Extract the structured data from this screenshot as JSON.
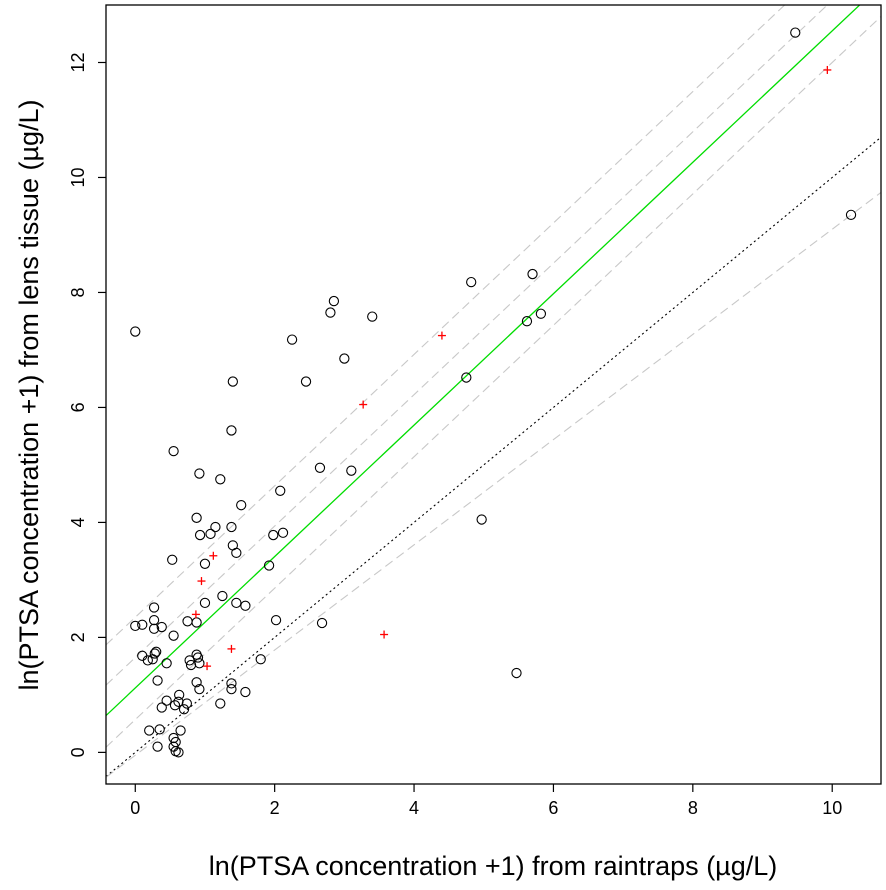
{
  "chart_data": {
    "type": "scatter",
    "title": "",
    "xlabel": "ln(PTSA concentration +1) from raintraps (µg/L)",
    "ylabel": "ln(PTSA concentration +1) from lens tissue (µg/L)",
    "xlim": [
      -0.42,
      10.7
    ],
    "ylim": [
      -0.55,
      13.0
    ],
    "x_ticks": [
      0,
      2,
      4,
      6,
      8,
      10
    ],
    "y_ticks": [
      0,
      2,
      4,
      6,
      8,
      10,
      12
    ],
    "grid": false,
    "colors": {
      "circles": "#000000",
      "plus": "#ff0000",
      "fit_line": "#00dd00",
      "one_to_one": "#000000",
      "band": "#c8c8c8"
    },
    "series": [
      {
        "name": "circles",
        "marker": "circle",
        "points": [
          [
            0.0,
            7.32
          ],
          [
            0.55,
            5.24
          ],
          [
            0.92,
            4.85
          ],
          [
            0.88,
            4.08
          ],
          [
            0.93,
            3.78
          ],
          [
            1.08,
            3.8
          ],
          [
            1.15,
            3.92
          ],
          [
            0.53,
            3.35
          ],
          [
            1.0,
            3.28
          ],
          [
            0.27,
            2.52
          ],
          [
            0.27,
            2.3
          ],
          [
            0.0,
            2.2
          ],
          [
            0.1,
            2.22
          ],
          [
            0.27,
            2.15
          ],
          [
            0.38,
            2.18
          ],
          [
            0.55,
            2.03
          ],
          [
            0.28,
            1.72
          ],
          [
            0.3,
            1.75
          ],
          [
            0.1,
            1.68
          ],
          [
            0.18,
            1.6
          ],
          [
            0.25,
            1.62
          ],
          [
            0.75,
            2.28
          ],
          [
            0.88,
            2.26
          ],
          [
            1.0,
            2.6
          ],
          [
            0.45,
            1.55
          ],
          [
            0.78,
            1.6
          ],
          [
            0.8,
            1.52
          ],
          [
            0.9,
            1.65
          ],
          [
            0.92,
            1.55
          ],
          [
            0.88,
            1.7
          ],
          [
            0.32,
            1.25
          ],
          [
            0.88,
            1.22
          ],
          [
            0.92,
            1.1
          ],
          [
            0.63,
            1.0
          ],
          [
            0.45,
            0.9
          ],
          [
            0.38,
            0.78
          ],
          [
            0.62,
            0.88
          ],
          [
            0.57,
            0.82
          ],
          [
            0.7,
            0.75
          ],
          [
            0.74,
            0.85
          ],
          [
            0.2,
            0.38
          ],
          [
            0.35,
            0.4
          ],
          [
            0.65,
            0.38
          ],
          [
            0.55,
            0.25
          ],
          [
            0.58,
            0.18
          ],
          [
            0.55,
            0.1
          ],
          [
            0.32,
            0.1
          ],
          [
            0.58,
            0.02
          ],
          [
            0.62,
            0.0
          ],
          [
            1.22,
            4.75
          ],
          [
            1.38,
            5.6
          ],
          [
            1.4,
            6.45
          ],
          [
            1.25,
            2.72
          ],
          [
            1.45,
            2.6
          ],
          [
            1.58,
            2.55
          ],
          [
            1.38,
            3.92
          ],
          [
            1.4,
            3.6
          ],
          [
            1.45,
            3.47
          ],
          [
            1.52,
            4.3
          ],
          [
            1.22,
            0.85
          ],
          [
            1.38,
            1.2
          ],
          [
            1.38,
            1.1
          ],
          [
            1.58,
            1.05
          ],
          [
            1.8,
            1.62
          ],
          [
            1.92,
            3.25
          ],
          [
            1.98,
            3.78
          ],
          [
            2.08,
            4.55
          ],
          [
            2.12,
            3.82
          ],
          [
            2.02,
            2.3
          ],
          [
            2.25,
            7.18
          ],
          [
            2.45,
            6.45
          ],
          [
            2.65,
            4.95
          ],
          [
            2.68,
            2.25
          ],
          [
            2.8,
            7.65
          ],
          [
            2.85,
            7.85
          ],
          [
            3.0,
            6.85
          ],
          [
            3.1,
            4.9
          ],
          [
            3.4,
            7.58
          ],
          [
            4.75,
            6.52
          ],
          [
            4.82,
            8.18
          ],
          [
            4.97,
            4.05
          ],
          [
            5.47,
            1.38
          ],
          [
            5.62,
            7.5
          ],
          [
            5.7,
            8.32
          ],
          [
            5.82,
            7.63
          ],
          [
            9.47,
            12.52
          ],
          [
            10.27,
            9.35
          ]
        ]
      },
      {
        "name": "plus",
        "marker": "plus",
        "points": [
          [
            1.12,
            3.42
          ],
          [
            0.95,
            2.98
          ],
          [
            0.87,
            2.4
          ],
          [
            1.38,
            1.8
          ],
          [
            1.03,
            1.5
          ],
          [
            3.27,
            6.05
          ],
          [
            4.4,
            7.25
          ],
          [
            3.57,
            2.05
          ],
          [
            9.93,
            11.87
          ]
        ]
      }
    ],
    "lines": [
      {
        "name": "fit",
        "style": "solid",
        "color_key": "fit_line",
        "intercept": 1.12,
        "slope": 1.143
      },
      {
        "name": "one-to-one",
        "style": "dotted",
        "color_key": "one_to_one",
        "intercept": 0.0,
        "slope": 1.0
      },
      {
        "name": "outer-upper",
        "style": "dashed",
        "color_key": "band",
        "intercept": 2.35,
        "slope": 1.143
      },
      {
        "name": "inner-upper",
        "style": "dashed",
        "color_key": "band",
        "intercept": 1.65,
        "slope": 1.143
      },
      {
        "name": "inner-lower",
        "style": "dashed",
        "color_key": "band",
        "intercept": 0.57,
        "slope": 1.143
      },
      {
        "name": "outer-lower",
        "style": "dashed",
        "color_key": "band",
        "intercept": -0.05,
        "slope": 0.915
      }
    ]
  }
}
